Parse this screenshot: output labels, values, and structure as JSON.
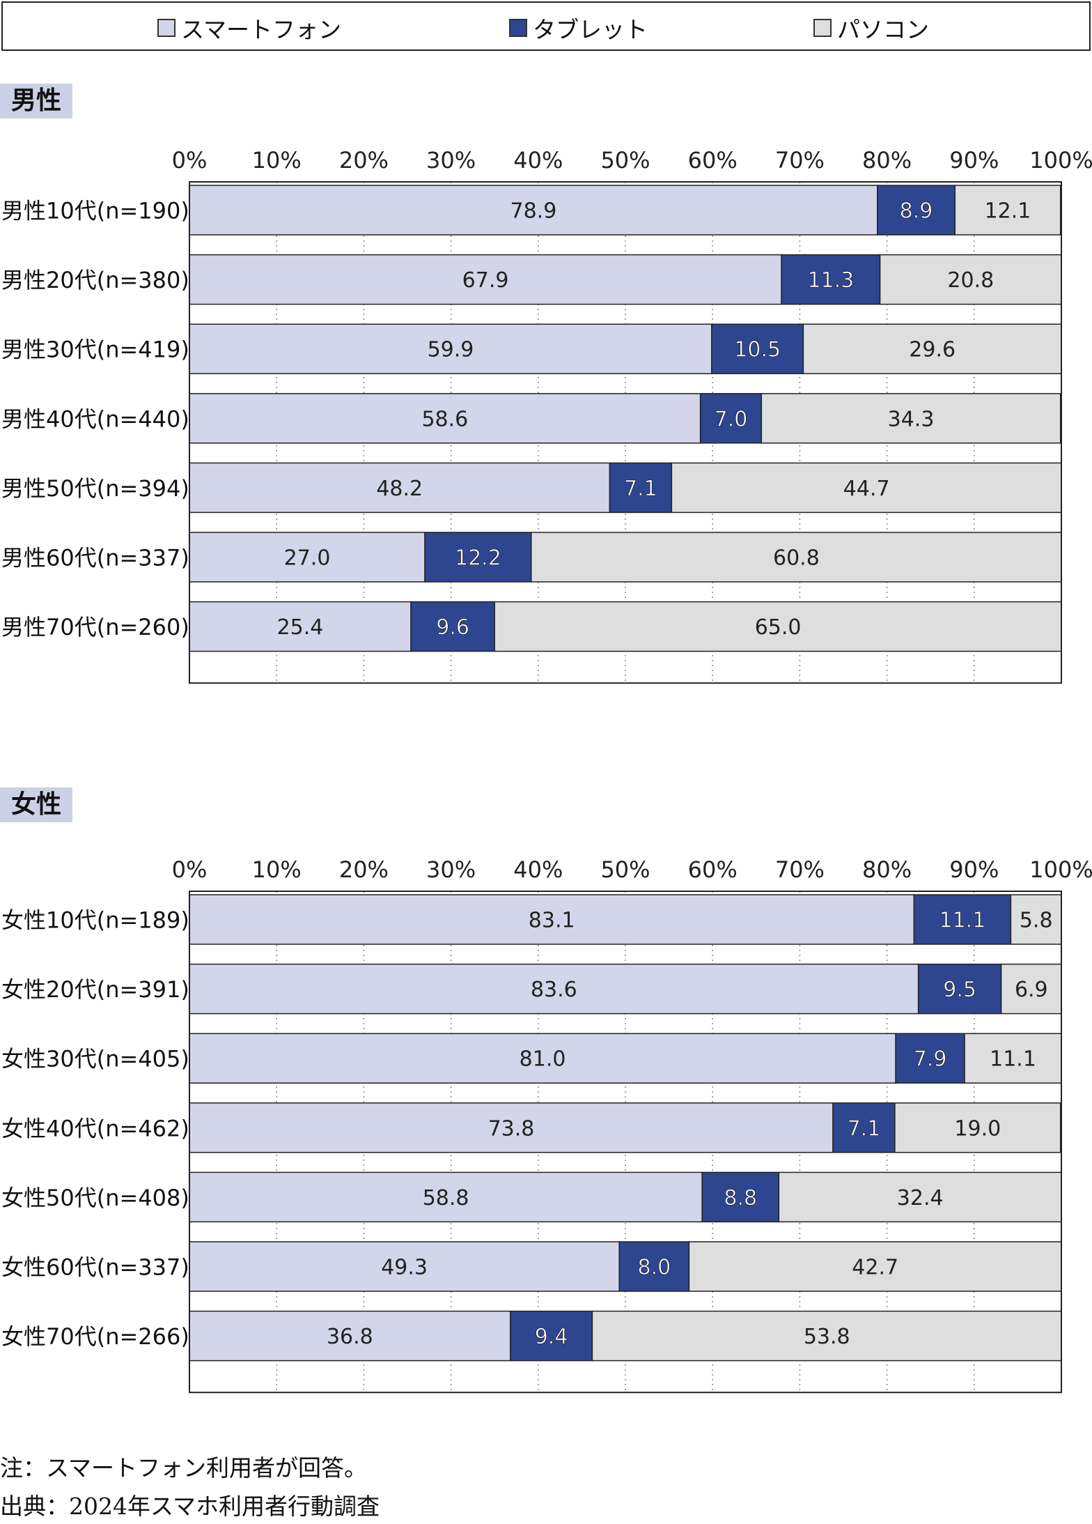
{
  "legend": {
    "items": [
      {
        "label": "スマートフォン",
        "color": "#d3d6ea"
      },
      {
        "label": "タブレット",
        "color": "#2e4690"
      },
      {
        "label": "パソコン",
        "color": "#dedede"
      }
    ]
  },
  "sections": {
    "male": {
      "label": "男性"
    },
    "female": {
      "label": "女性"
    }
  },
  "notes": {
    "note": "注：スマートフォン利用者が回答。",
    "source": "出典：2024年スマホ利用者行動調査"
  },
  "chart_data": [
    {
      "type": "bar",
      "orientation": "horizontal",
      "stacked": "percent",
      "panel": "男性",
      "xlim": [
        0,
        100
      ],
      "ticks": [
        "0%",
        "10%",
        "20%",
        "30%",
        "40%",
        "50%",
        "60%",
        "70%",
        "80%",
        "90%",
        "100%"
      ],
      "categories": [
        "男性10代(n=190)",
        "男性20代(n=380)",
        "男性30代(n=419)",
        "男性40代(n=440)",
        "男性50代(n=394)",
        "男性60代(n=337)",
        "男性70代(n=260)"
      ],
      "series": [
        {
          "name": "スマートフォン",
          "values": [
            78.9,
            67.9,
            59.9,
            58.6,
            48.2,
            27.0,
            25.4
          ],
          "labels": [
            "78.9",
            "67.9",
            "59.9",
            "58.6",
            "48.2",
            "27.0",
            "25.4"
          ]
        },
        {
          "name": "タブレット",
          "values": [
            8.9,
            11.3,
            10.5,
            7.0,
            7.1,
            12.2,
            9.6
          ],
          "labels": [
            "8.9",
            "11.3",
            "10.5",
            "7.0",
            "7.1",
            "12.2",
            "9.6"
          ]
        },
        {
          "name": "パソコン",
          "values": [
            12.1,
            20.8,
            29.6,
            34.3,
            44.7,
            60.8,
            65.0
          ],
          "labels": [
            "12.1",
            "20.8",
            "29.6",
            "34.3",
            "44.7",
            "60.8",
            "65.0"
          ]
        }
      ]
    },
    {
      "type": "bar",
      "orientation": "horizontal",
      "stacked": "percent",
      "panel": "女性",
      "xlim": [
        0,
        100
      ],
      "ticks": [
        "0%",
        "10%",
        "20%",
        "30%",
        "40%",
        "50%",
        "60%",
        "70%",
        "80%",
        "90%",
        "100%"
      ],
      "categories": [
        "女性10代(n=189)",
        "女性20代(n=391)",
        "女性30代(n=405)",
        "女性40代(n=462)",
        "女性50代(n=408)",
        "女性60代(n=337)",
        "女性70代(n=266)"
      ],
      "series": [
        {
          "name": "スマートフォン",
          "values": [
            83.1,
            83.6,
            81.0,
            73.8,
            58.8,
            49.3,
            36.8
          ],
          "labels": [
            "83.1",
            "83.6",
            "81.0",
            "73.8",
            "58.8",
            "49.3",
            "36.8"
          ]
        },
        {
          "name": "タブレット",
          "values": [
            11.1,
            9.5,
            7.9,
            7.1,
            8.8,
            8.0,
            9.4
          ],
          "labels": [
            "11.1",
            "9.5",
            "7.9",
            "7.1",
            "8.8",
            "8.0",
            "9.4"
          ]
        },
        {
          "name": "パソコン",
          "values": [
            5.8,
            6.9,
            11.1,
            19.0,
            32.4,
            42.7,
            53.8
          ],
          "labels": [
            "5.8",
            "6.9",
            "11.1",
            "19.0",
            "32.4",
            "42.7",
            "53.8"
          ]
        }
      ]
    }
  ]
}
